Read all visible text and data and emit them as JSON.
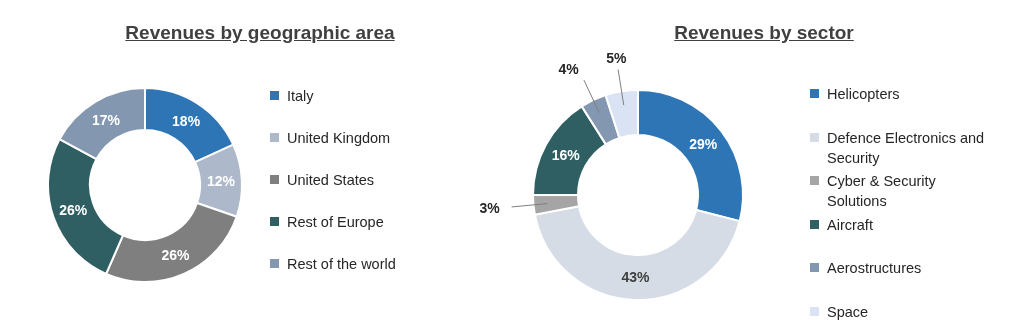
{
  "chart_data": [
    {
      "type": "donut",
      "title": "Revenues by geographic area",
      "categories": [
        "Italy",
        "United Kingdom",
        "United States",
        "Rest of Europe",
        "Rest of the world"
      ],
      "values": [
        18,
        12,
        26,
        26,
        17
      ],
      "value_labels": [
        "18%",
        "12%",
        "26%",
        "26%",
        "17%"
      ],
      "colors": [
        "#2e75b6",
        "#adb9ca",
        "#7f7f7f",
        "#2f5f63",
        "#8497b0"
      ],
      "legend": "right"
    },
    {
      "type": "donut",
      "title": "Revenues by sector",
      "categories": [
        "Helicopters",
        "Defence Electronics and Security",
        "Cyber & Security Solutions",
        "Aircraft",
        "Aerostructures",
        "Space"
      ],
      "values": [
        29,
        43,
        3,
        16,
        4,
        5
      ],
      "value_labels": [
        "29%",
        "43%",
        "3%",
        "16%",
        "4%",
        "5%"
      ],
      "colors": [
        "#2e75b6",
        "#d6dce5",
        "#a5a5a5",
        "#2f5f63",
        "#8497b0",
        "#dae3f3"
      ],
      "legend": "right"
    }
  ]
}
